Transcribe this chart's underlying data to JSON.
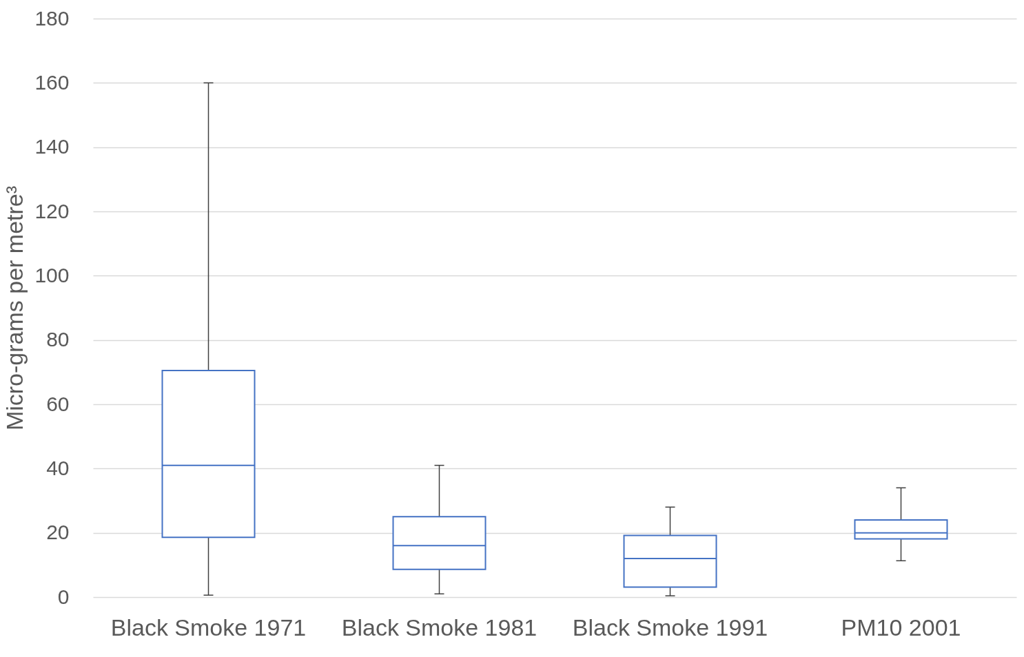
{
  "chart_data": {
    "type": "box",
    "ylabel": "Micro-grams per metre³",
    "categories": [
      "Black Smoke 1971",
      "Black Smoke 1981",
      "Black Smoke 1991",
      "PM10 2001"
    ],
    "color": "#4472c4",
    "boxes": [
      {
        "low": 0.6,
        "q1": 18.6,
        "median": 41,
        "q3": 70.5,
        "high": 160
      },
      {
        "low": 1,
        "q1": 8.6,
        "median": 16,
        "q3": 25,
        "high": 41
      },
      {
        "low": 0.4,
        "q1": 3.1,
        "median": 12,
        "q3": 19.2,
        "high": 28
      },
      {
        "low": 11.3,
        "q1": 18.1,
        "median": 20,
        "q3": 24,
        "high": 34
      }
    ],
    "ylim": [
      0,
      180
    ],
    "yticks": [
      0,
      20,
      40,
      60,
      80,
      100,
      120,
      140,
      160,
      180
    ],
    "grid": "y"
  }
}
